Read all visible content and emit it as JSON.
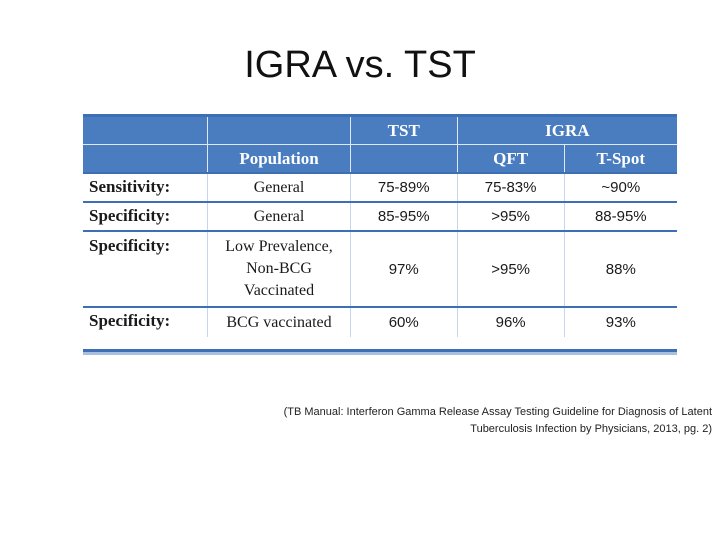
{
  "slide": {
    "title": "IGRA vs. TST"
  },
  "table": {
    "header_top": [
      "",
      "",
      "TST",
      "IGRA"
    ],
    "header_sub": [
      "",
      "Population",
      "",
      "QFT",
      "T-Spot"
    ],
    "rows": [
      {
        "label": "Sensitivity:",
        "population": "General",
        "tst": "75-89%",
        "qft": "75-83%",
        "tspot": "~90%"
      },
      {
        "label": "Specificity:",
        "population": "General",
        "tst": "85-95%",
        "qft": ">95%",
        "tspot": "88-95%"
      },
      {
        "label": "Specificity:",
        "population_lines": [
          "Low Prevalence,",
          "Non-BCG",
          "Vaccinated"
        ],
        "tst": "97%",
        "qft": ">95%",
        "tspot": "88%"
      },
      {
        "label": "Specificity:",
        "population": "BCG vaccinated",
        "tst": "60%",
        "qft": "96%",
        "tspot": "93%"
      }
    ]
  },
  "citation": {
    "line1": "(TB Manual:  Interferon Gamma Release Assay Testing Guideline for Diagnosis of Latent",
    "line2": "Tuberculosis Infection by Physicians, 2013, pg. 2)"
  }
}
